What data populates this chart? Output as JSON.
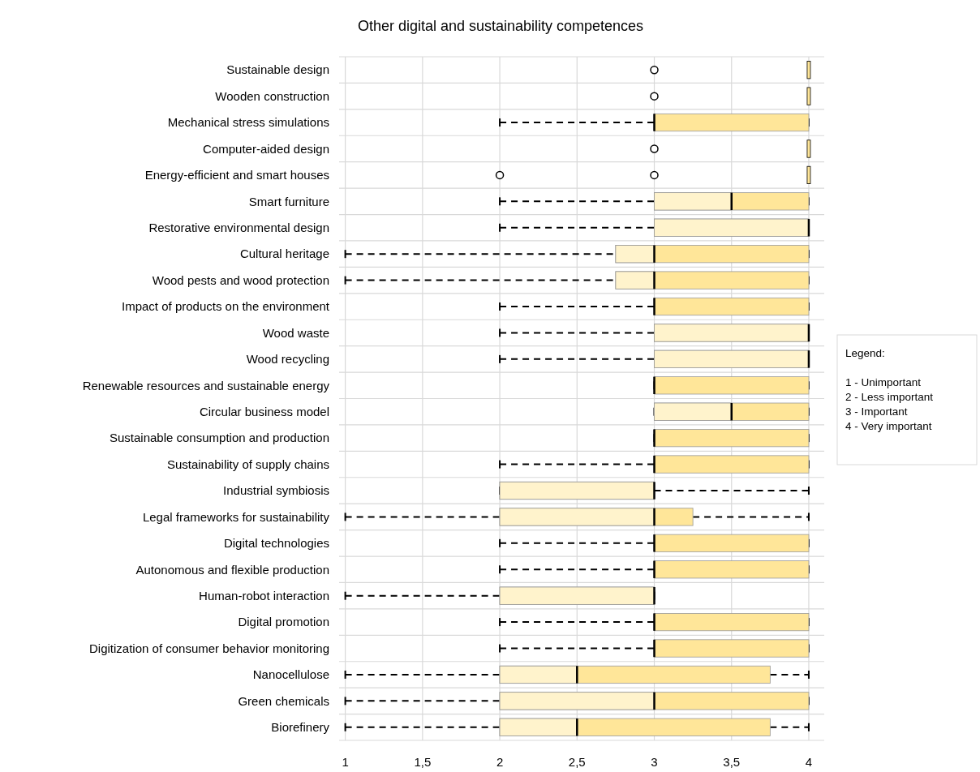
{
  "chart_data": {
    "type": "box",
    "title": "Other digital and sustainability competences",
    "orientation": "horizontal",
    "grid": true,
    "line_style": "dashed",
    "marker": "circle",
    "categories": [
      "Sustainable design",
      "Wooden construction",
      "Mechanical stress simulations",
      "Computer-aided design",
      "Energy-efficient and smart houses",
      "Smart furniture",
      "Restorative environmental design",
      "Cultural heritage",
      "Wood pests and wood protection",
      "Impact of products on the environment",
      "Wood waste",
      "Wood recycling",
      "Renewable resources and sustainable energy",
      "Circular business model",
      "Sustainable consumption and production",
      "Sustainability of supply chains",
      "Industrial symbiosis",
      "Legal frameworks for sustainability",
      "Digital technologies",
      "Autonomous and flexible production",
      "Human-robot interaction",
      "Digital promotion",
      "Digitization of consumer behavior monitoring",
      "Nanocellulose",
      "Green chemicals",
      "Biorefinery"
    ],
    "xlim": [
      0.96,
      4.1
    ],
    "xticks": [
      1,
      {
        "value": 1.5,
        "label": "1,5"
      },
      2,
      {
        "value": 2.5,
        "label": "2,5"
      },
      3,
      {
        "value": 3.5,
        "label": "3,5"
      },
      4
    ],
    "series": [
      {
        "color": "#ffe699",
        "boxes": [
          {
            "low": 4,
            "q1": 4,
            "median": 4,
            "q3": 4,
            "high": 4,
            "outliers": [
              3
            ]
          },
          {
            "low": 4,
            "q1": 4,
            "median": 4,
            "q3": 4,
            "high": 4,
            "outliers": [
              3
            ]
          },
          {
            "low": 2,
            "q1": 3,
            "median": 3,
            "q3": 4,
            "high": 4
          },
          {
            "low": 4,
            "q1": 4,
            "median": 4,
            "q3": 4,
            "high": 4,
            "outliers": [
              3
            ]
          },
          {
            "low": 4,
            "q1": 4,
            "median": 4,
            "q3": 4,
            "high": 4,
            "outliers": [
              2,
              3
            ]
          },
          {
            "low": 2,
            "q1": 3,
            "median": 3.5,
            "q3": 4,
            "high": 4
          },
          {
            "low": 2,
            "q1": 3,
            "median": 4,
            "q3": 4,
            "high": 4
          },
          {
            "low": 1,
            "q1": 2.75,
            "median": 3,
            "q3": 4,
            "high": 4
          },
          {
            "low": 1,
            "q1": 2.75,
            "median": 3,
            "q3": 4,
            "high": 4
          },
          {
            "low": 2,
            "q1": 3,
            "median": 3,
            "q3": 4,
            "high": 4
          },
          {
            "low": 2,
            "q1": 3,
            "median": 4,
            "q3": 4,
            "high": 4
          },
          {
            "low": 2,
            "q1": 3,
            "median": 4,
            "q3": 4,
            "high": 4
          },
          {
            "low": 3,
            "q1": 3,
            "median": 3,
            "q3": 4,
            "high": 4
          },
          {
            "low": 3,
            "q1": 3,
            "median": 3.5,
            "q3": 4,
            "high": 4
          },
          {
            "low": 3,
            "q1": 3,
            "median": 3,
            "q3": 4,
            "high": 4
          },
          {
            "low": 2,
            "q1": 3,
            "median": 3,
            "q3": 4,
            "high": 4
          },
          {
            "low": 2,
            "q1": 2,
            "median": 3,
            "q3": 3,
            "high": 4
          },
          {
            "low": 1,
            "q1": 2,
            "median": 3,
            "q3": 3.25,
            "high": 4
          },
          {
            "low": 2,
            "q1": 3,
            "median": 3,
            "q3": 4,
            "high": 4
          },
          {
            "low": 2,
            "q1": 3,
            "median": 3,
            "q3": 4,
            "high": 4
          },
          {
            "low": 1,
            "q1": 2,
            "median": 3,
            "q3": 3,
            "high": 3
          },
          {
            "low": 2,
            "q1": 3,
            "median": 3,
            "q3": 4,
            "high": 4
          },
          {
            "low": 2,
            "q1": 3,
            "median": 3,
            "q3": 4,
            "high": 4
          },
          {
            "low": 1,
            "q1": 2,
            "median": 2.5,
            "q3": 3.75,
            "high": 4
          },
          {
            "low": 1,
            "q1": 2,
            "median": 3,
            "q3": 4,
            "high": 4
          },
          {
            "low": 1,
            "q1": 2,
            "median": 2.5,
            "q3": 3.75,
            "high": 4
          }
        ]
      }
    ],
    "annotations": [
      "Legend:",
      "1 - Unimportant",
      "2 - Less important",
      "3 - Important",
      "4 - Very important"
    ]
  }
}
